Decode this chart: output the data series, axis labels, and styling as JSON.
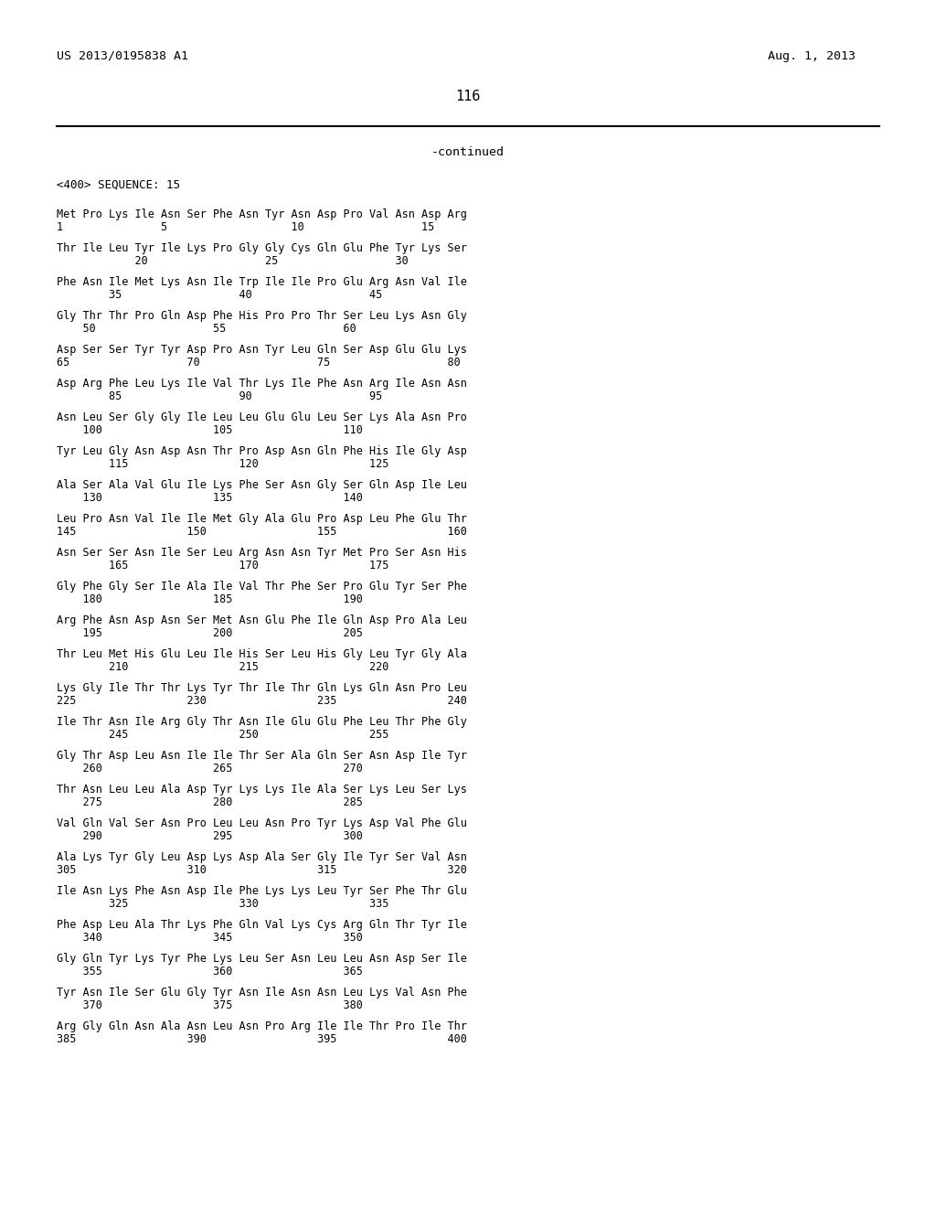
{
  "patent_number": "US 2013/0195838 A1",
  "date": "Aug. 1, 2013",
  "page_number": "116",
  "continued_label": "-continued",
  "sequence_header": "<400> SEQUENCE: 15",
  "seq_correct": [
    [
      "Met Pro Lys Ile Asn Ser Phe Asn Tyr Asn Asp Pro Val Asn Asp Arg",
      "1               5                   10                  15"
    ],
    [
      "Thr Ile Leu Tyr Ile Lys Pro Gly Gly Cys Gln Glu Phe Tyr Lys Ser",
      "            20                  25                  30"
    ],
    [
      "Phe Asn Ile Met Lys Asn Ile Trp Ile Ile Pro Glu Arg Asn Val Ile",
      "        35                  40                  45"
    ],
    [
      "Gly Thr Thr Pro Gln Asp Phe His Pro Pro Thr Ser Leu Lys Asn Gly",
      "    50                  55                  60"
    ],
    [
      "Asp Ser Ser Tyr Tyr Asp Pro Asn Tyr Leu Gln Ser Asp Glu Glu Lys",
      "65                  70                  75                  80"
    ],
    [
      "Asp Arg Phe Leu Lys Ile Val Thr Lys Ile Phe Asn Arg Ile Asn Asn",
      "        85                  90                  95"
    ],
    [
      "Asn Leu Ser Gly Gly Ile Leu Leu Glu Glu Leu Ser Lys Ala Asn Pro",
      "    100                 105                 110"
    ],
    [
      "Tyr Leu Gly Asn Asp Asn Thr Pro Asp Asn Gln Phe His Ile Gly Asp",
      "        115                 120                 125"
    ],
    [
      "Ala Ser Ala Val Glu Ile Lys Phe Ser Asn Gly Ser Gln Asp Ile Leu",
      "    130                 135                 140"
    ],
    [
      "Leu Pro Asn Val Ile Ile Met Gly Ala Glu Pro Asp Leu Phe Glu Thr",
      "145                 150                 155                 160"
    ],
    [
      "Asn Ser Ser Asn Ile Ser Leu Arg Asn Asn Tyr Met Pro Ser Asn His",
      "        165                 170                 175"
    ],
    [
      "Gly Phe Gly Ser Ile Ala Ile Val Thr Phe Ser Pro Glu Tyr Ser Phe",
      "    180                 185                 190"
    ],
    [
      "Arg Phe Asn Asp Asn Ser Met Asn Glu Phe Ile Gln Asp Pro Ala Leu",
      "    195                 200                 205"
    ],
    [
      "Thr Leu Met His Glu Leu Ile His Ser Leu His Gly Leu Tyr Gly Ala",
      "        210                 215                 220"
    ],
    [
      "Lys Gly Ile Thr Thr Lys Tyr Thr Ile Thr Gln Lys Gln Asn Pro Leu",
      "225                 230                 235                 240"
    ],
    [
      "Ile Thr Asn Ile Arg Gly Thr Asn Ile Glu Glu Phe Leu Thr Phe Gly",
      "        245                 250                 255"
    ],
    [
      "Gly Thr Asp Leu Asn Ile Ile Thr Ser Ala Gln Ser Asn Asp Ile Tyr",
      "    260                 265                 270"
    ],
    [
      "Thr Asn Leu Leu Ala Asp Tyr Lys Lys Ile Ala Ser Lys Leu Ser Lys",
      "    275                 280                 285"
    ],
    [
      "Val Gln Val Ser Asn Pro Leu Leu Asn Pro Tyr Lys Asp Val Phe Glu",
      "    290                 295                 300"
    ],
    [
      "Ala Lys Tyr Gly Leu Asp Lys Asp Ala Ser Gly Ile Tyr Ser Val Asn",
      "305                 310                 315                 320"
    ],
    [
      "Ile Asn Lys Phe Asn Asp Ile Phe Lys Lys Leu Tyr Ser Phe Thr Glu",
      "        325                 330                 335"
    ],
    [
      "Phe Asp Leu Ala Thr Lys Phe Gln Val Lys Cys Arg Gln Thr Tyr Ile",
      "    340                 345                 350"
    ],
    [
      "Gly Gln Tyr Lys Tyr Phe Lys Leu Ser Asn Leu Leu Asn Asp Ser Ile",
      "    355                 360                 365"
    ],
    [
      "Tyr Asn Ile Ser Glu Gly Tyr Asn Ile Asn Asn Leu Lys Val Asn Phe",
      "    370                 375                 380"
    ],
    [
      "Arg Gly Gln Asn Ala Asn Leu Asn Pro Arg Ile Ile Thr Pro Ile Thr",
      "385                 390                 395                 400"
    ]
  ],
  "bg_color": "#ffffff",
  "text_color": "#000000"
}
